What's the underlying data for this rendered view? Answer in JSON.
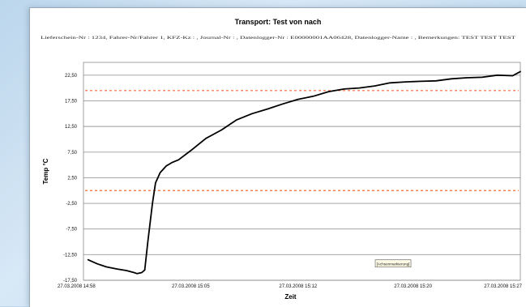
{
  "chart_data": {
    "type": "line",
    "title": "Transport: Test von nach",
    "subtitle": "Lieferschein-Nr : 1234, Fahrer-Nr/Fahrer 1, KFZ-Kz : , Journal-Nr : , Datenlogger-Nr : E00000001AA06428, Datenlogger-Name : , Bemerkungen: TEST TEST TEST",
    "xlabel": "Zeit",
    "ylabel": "Temp °C",
    "ylim": [
      -17.5,
      25
    ],
    "y_ticks": [
      "-17,50",
      "-12,50",
      "-7,50",
      "-2,50",
      "2,50",
      "7,50",
      "12,50",
      "17,50",
      "22,50"
    ],
    "y_tick_values": [
      -17.5,
      -12.5,
      -7.5,
      -2.5,
      2.5,
      7.5,
      12.5,
      17.5,
      22.5
    ],
    "grid": true,
    "x_ticks": [
      "27.03.2008 14:58",
      "27.03.2008 15:05",
      "27.03.2008 15:12",
      "27.03.2008 15:20",
      "27.03.2008 15:27"
    ],
    "x_tick_minutes": [
      0,
      7,
      14,
      21.5,
      28.5
    ],
    "xlim_minutes": [
      0,
      28.5
    ],
    "limits": [
      {
        "value": 19.5,
        "color": "#ff6633",
        "style": "dashed"
      },
      {
        "value": 0.0,
        "color": "#ff6633",
        "style": "dashed"
      }
    ],
    "series": [
      {
        "color": "#000000",
        "x_minutes": [
          0.3,
          0.9,
          1.5,
          2.2,
          2.8,
          3.3,
          3.5,
          3.8,
          4.0,
          4.2,
          4.5,
          4.7,
          5.0,
          5.4,
          5.8,
          6.2,
          7.0,
          8.0,
          9.0,
          10.0,
          11.0,
          12.0,
          13.0,
          14.0,
          15.0,
          16.0,
          17.0,
          18.0,
          19.0,
          20.0,
          21.0,
          22.0,
          23.0,
          24.0,
          25.0,
          26.0,
          27.0,
          28.0,
          28.5
        ],
        "values": [
          -13.5,
          -14.3,
          -14.9,
          -15.3,
          -15.6,
          -16.0,
          -16.2,
          -16.0,
          -15.5,
          -10.0,
          -2.5,
          1.5,
          3.5,
          4.8,
          5.5,
          6.0,
          7.8,
          10.2,
          11.8,
          13.8,
          15.0,
          15.9,
          16.9,
          17.8,
          18.4,
          19.3,
          19.8,
          20.0,
          20.4,
          21.0,
          21.2,
          21.3,
          21.4,
          21.8,
          22.0,
          22.1,
          22.5,
          22.4,
          23.2
        ]
      }
    ],
    "annotation": "[Achsenmarkierung]",
    "annotation_x_minutes": 20.2,
    "annotation_y": -14.3
  }
}
